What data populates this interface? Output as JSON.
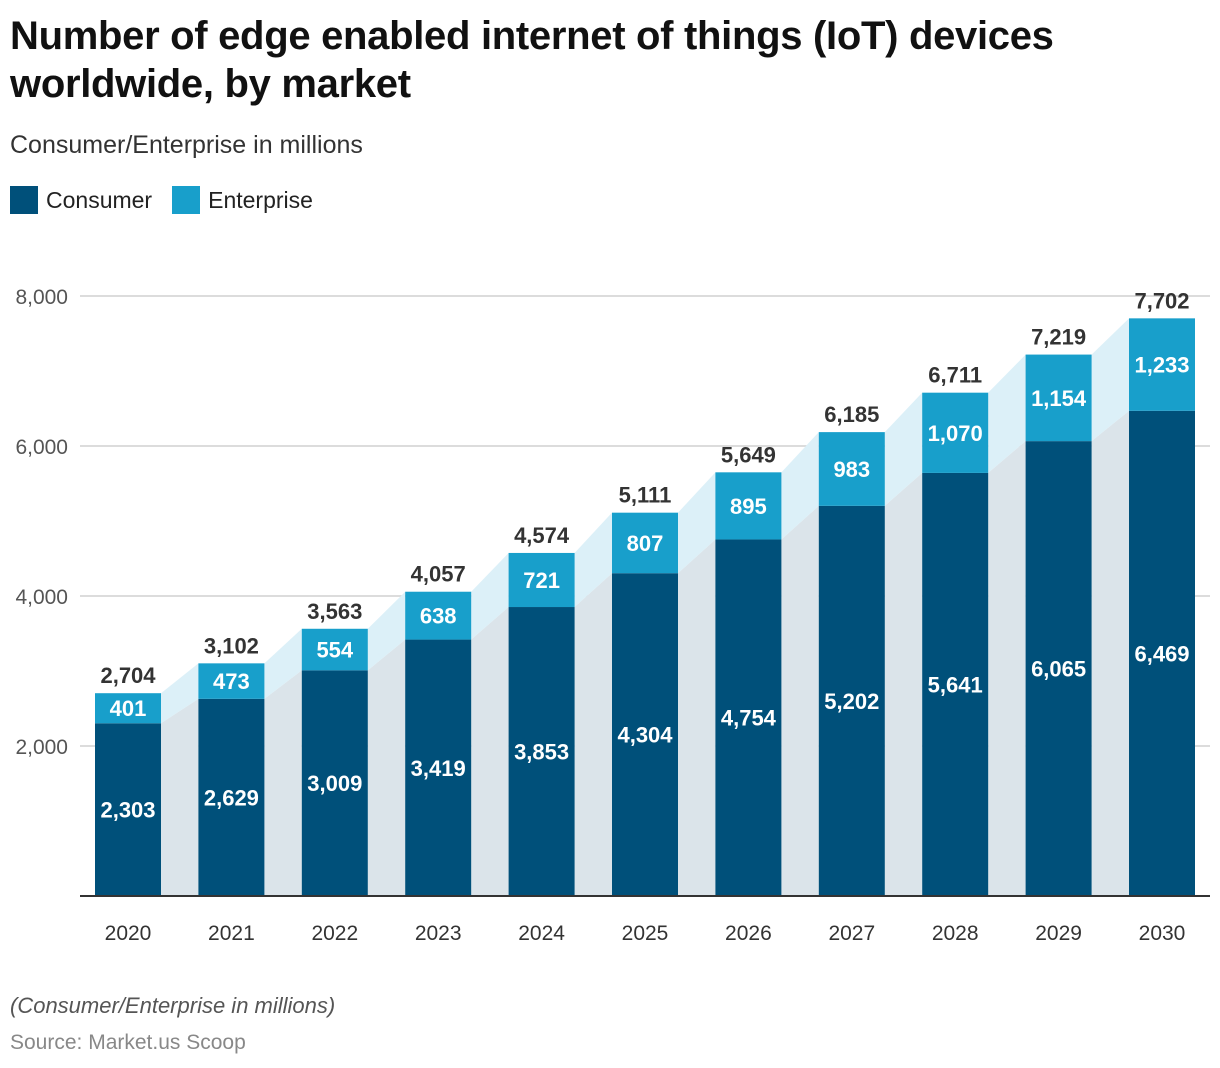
{
  "title": "Number of edge enabled internet of things (IoT) devices worldwide, by market",
  "subtitle": "Consumer/Enterprise in millions",
  "note": "(Consumer/Enterprise in millions)",
  "source": "Source: Market.us Scoop",
  "colors": {
    "consumer": "#00507a",
    "enterprise": "#189fcb",
    "consumer_band": "#dbe4ea",
    "enterprise_band": "#dcf0f8"
  },
  "chart_data": {
    "type": "bar",
    "stacked": true,
    "title": "Number of edge enabled internet of things (IoT) devices worldwide, by market",
    "xlabel": "",
    "ylabel": "",
    "ylim": [
      0,
      8000
    ],
    "yticks": [
      2000,
      4000,
      6000,
      8000
    ],
    "ytick_labels": [
      "2,000",
      "4,000",
      "6,000",
      "8,000"
    ],
    "grid": true,
    "legend_position": "top-left",
    "categories": [
      "2020",
      "2021",
      "2022",
      "2023",
      "2024",
      "2025",
      "2026",
      "2027",
      "2028",
      "2029",
      "2030"
    ],
    "series": [
      {
        "name": "Consumer",
        "values": [
          2303,
          2629,
          3009,
          3419,
          3853,
          4304,
          4754,
          5202,
          5641,
          6065,
          6469
        ],
        "labels": [
          "2,303",
          "2,629",
          "3,009",
          "3,419",
          "3,853",
          "4,304",
          "4,754",
          "5,202",
          "5,641",
          "6,065",
          "6,469"
        ]
      },
      {
        "name": "Enterprise",
        "values": [
          401,
          473,
          554,
          638,
          721,
          807,
          895,
          983,
          1070,
          1154,
          1233
        ],
        "labels": [
          "401",
          "473",
          "554",
          "638",
          "721",
          "807",
          "895",
          "983",
          "1,070",
          "1,154",
          "1,233"
        ]
      }
    ],
    "totals": [
      "2,704",
      "3,102",
      "3,563",
      "4,057",
      "4,574",
      "5,111",
      "5,649",
      "6,185",
      "6,711",
      "7,219",
      "7,702"
    ]
  }
}
